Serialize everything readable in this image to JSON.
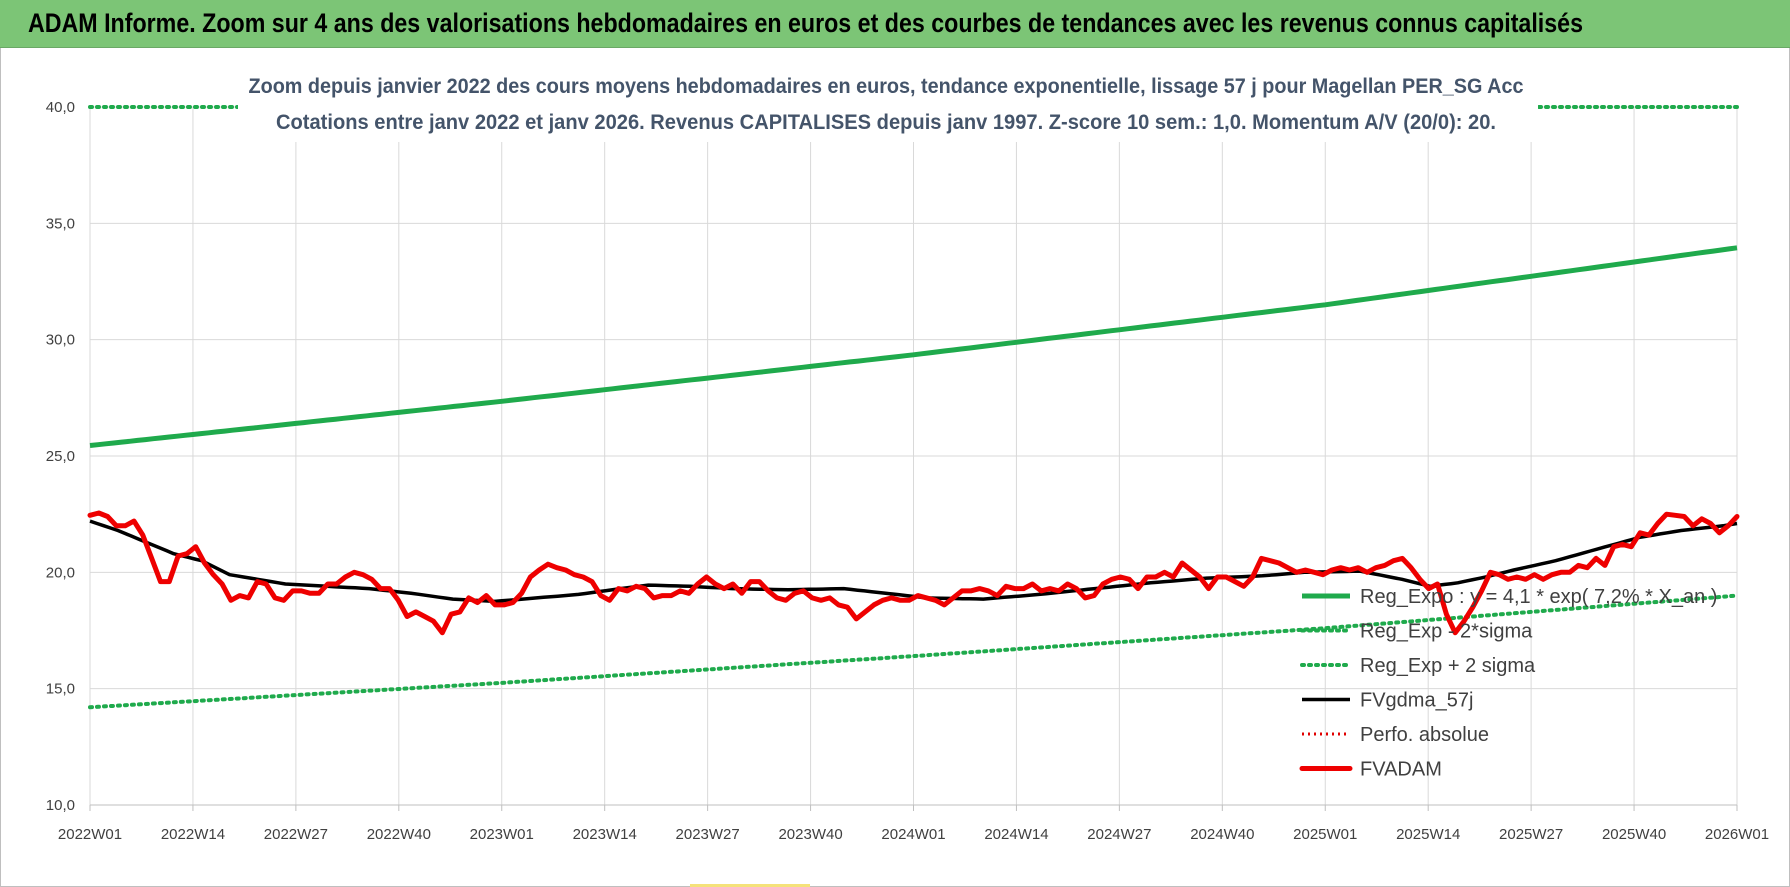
{
  "header": {
    "title": "ADAM Informe. Zoom sur 4 ans des valorisations hebdomadaires en euros et des courbes de tendances avec les revenus connus capitalisés"
  },
  "colors": {
    "header_bg": "#7cc576",
    "reg_exp": "#1faa4c",
    "fv_gdma": "#000000",
    "perfo": "#e00000",
    "fvadam": "#ee0000",
    "title_text": "#44546a",
    "grid": "#d9d9d9"
  },
  "chart_data": {
    "type": "line",
    "title_lines": [
      "Zoom depuis janvier 2022 des cours moyens hebdomadaires en euros, tendance exponentielle, lissage 57 j pour Magellan PER_SG Acc",
      "Cotations entre janv 2022 et janv 2026. Revenus CAPITALISES depuis janv 1997. Z-score 10 sem.: 1,0. Momentum A/V (20/0): 20."
    ],
    "ylim": [
      10,
      40
    ],
    "y_ticks": [
      "10,0",
      "15,0",
      "20,0",
      "25,0",
      "30,0",
      "35,0",
      "40,0"
    ],
    "x_tick_labels": [
      "2022W01",
      "2022W14",
      "2022W27",
      "2022W40",
      "2023W01",
      "2023W14",
      "2023W27",
      "2023W40",
      "2024W01",
      "2024W14",
      "2024W27",
      "2024W40",
      "2025W01",
      "2025W14",
      "2025W27",
      "2025W40",
      "2026W01"
    ],
    "week_count": 209,
    "grid": true,
    "legend_position": "bottom-right",
    "series": [
      {
        "name": "Reg_Expo : y = 4,1 * exp( 7,2% * X_an )",
        "style": "solid-thick-green",
        "anchors": [
          [
            0,
            25.45
          ],
          [
            52,
            27.35
          ],
          [
            104,
            29.35
          ],
          [
            156,
            31.5
          ],
          [
            208,
            33.95
          ]
        ]
      },
      {
        "name": "Reg_Exp - 2*sigma",
        "style": "dotted-green",
        "anchors": [
          [
            0,
            14.2
          ],
          [
            52,
            15.25
          ],
          [
            104,
            16.4
          ],
          [
            156,
            17.6
          ],
          [
            208,
            19.0
          ]
        ]
      },
      {
        "name": "Reg_Exp + 2 sigma",
        "style": "dotted-green",
        "anchors": [
          [
            0,
            40.0
          ],
          [
            208,
            40.0
          ]
        ]
      },
      {
        "name": "FVgdma_57j",
        "style": "solid-black",
        "anchors": [
          [
            0,
            22.2
          ],
          [
            4,
            21.8
          ],
          [
            8,
            21.3
          ],
          [
            12,
            20.8
          ],
          [
            16,
            20.5
          ],
          [
            20,
            19.9
          ],
          [
            24,
            19.7
          ],
          [
            28,
            19.5
          ],
          [
            34,
            19.4
          ],
          [
            40,
            19.3
          ],
          [
            46,
            19.1
          ],
          [
            52,
            18.85
          ],
          [
            58,
            18.75
          ],
          [
            64,
            18.9
          ],
          [
            70,
            19.05
          ],
          [
            76,
            19.3
          ],
          [
            80,
            19.45
          ],
          [
            86,
            19.4
          ],
          [
            92,
            19.3
          ],
          [
            100,
            19.25
          ],
          [
            108,
            19.3
          ],
          [
            114,
            19.1
          ],
          [
            120,
            18.9
          ],
          [
            128,
            18.85
          ],
          [
            136,
            19.05
          ],
          [
            144,
            19.3
          ],
          [
            152,
            19.55
          ],
          [
            160,
            19.75
          ],
          [
            168,
            19.85
          ],
          [
            174,
            20.0
          ],
          [
            182,
            20.05
          ],
          [
            188,
            19.7
          ],
          [
            192,
            19.4
          ],
          [
            196,
            19.55
          ],
          [
            200,
            19.8
          ],
          [
            204,
            20.1
          ],
          [
            210,
            20.5
          ],
          [
            216,
            21.0
          ],
          [
            222,
            21.5
          ],
          [
            228,
            21.8
          ],
          [
            234,
            22.0
          ],
          [
            236,
            22.1
          ]
        ]
      },
      {
        "name": "Perfo. absolue",
        "style": "dotted-red",
        "anchors": []
      },
      {
        "name": "FVADAM",
        "style": "solid-thick-red",
        "anchors": [
          [
            0,
            22.45
          ],
          [
            1,
            22.55
          ],
          [
            2,
            22.4
          ],
          [
            3,
            22.0
          ],
          [
            4,
            22.0
          ],
          [
            5,
            22.2
          ],
          [
            6,
            21.6
          ],
          [
            7,
            20.6
          ],
          [
            8,
            19.6
          ],
          [
            9,
            19.6
          ],
          [
            10,
            20.7
          ],
          [
            11,
            20.8
          ],
          [
            12,
            21.1
          ],
          [
            13,
            20.4
          ],
          [
            14,
            19.9
          ],
          [
            15,
            19.5
          ],
          [
            16,
            18.8
          ],
          [
            17,
            19.0
          ],
          [
            18,
            18.9
          ],
          [
            19,
            19.6
          ],
          [
            20,
            19.5
          ],
          [
            21,
            18.9
          ],
          [
            22,
            18.8
          ],
          [
            23,
            19.2
          ],
          [
            24,
            19.2
          ],
          [
            25,
            19.1
          ],
          [
            26,
            19.1
          ],
          [
            27,
            19.5
          ],
          [
            28,
            19.5
          ],
          [
            29,
            19.8
          ],
          [
            30,
            20.0
          ],
          [
            31,
            19.9
          ],
          [
            32,
            19.7
          ],
          [
            33,
            19.3
          ],
          [
            34,
            19.3
          ],
          [
            35,
            18.8
          ],
          [
            36,
            18.1
          ],
          [
            37,
            18.3
          ],
          [
            38,
            18.1
          ],
          [
            39,
            17.9
          ],
          [
            40,
            17.4
          ],
          [
            41,
            18.2
          ],
          [
            42,
            18.3
          ],
          [
            43,
            18.9
          ],
          [
            44,
            18.7
          ],
          [
            45,
            19.0
          ],
          [
            46,
            18.6
          ],
          [
            47,
            18.6
          ],
          [
            48,
            18.7
          ],
          [
            49,
            19.1
          ],
          [
            50,
            19.8
          ],
          [
            51,
            20.1
          ],
          [
            52,
            20.35
          ],
          [
            53,
            20.2
          ],
          [
            54,
            20.1
          ],
          [
            55,
            19.9
          ],
          [
            56,
            19.8
          ],
          [
            57,
            19.6
          ],
          [
            58,
            19.0
          ],
          [
            59,
            18.8
          ],
          [
            60,
            19.3
          ],
          [
            61,
            19.2
          ],
          [
            62,
            19.4
          ],
          [
            63,
            19.3
          ],
          [
            64,
            18.9
          ],
          [
            65,
            19.0
          ],
          [
            66,
            19.0
          ],
          [
            67,
            19.2
          ],
          [
            68,
            19.1
          ],
          [
            69,
            19.5
          ],
          [
            70,
            19.8
          ],
          [
            71,
            19.5
          ],
          [
            72,
            19.3
          ],
          [
            73,
            19.5
          ],
          [
            74,
            19.1
          ],
          [
            75,
            19.6
          ],
          [
            76,
            19.6
          ],
          [
            77,
            19.2
          ],
          [
            78,
            18.9
          ],
          [
            79,
            18.8
          ],
          [
            80,
            19.1
          ],
          [
            81,
            19.2
          ],
          [
            82,
            18.9
          ],
          [
            83,
            18.8
          ],
          [
            84,
            18.9
          ],
          [
            85,
            18.6
          ],
          [
            86,
            18.5
          ],
          [
            87,
            18.0
          ],
          [
            88,
            18.3
          ],
          [
            89,
            18.6
          ],
          [
            90,
            18.8
          ],
          [
            91,
            18.9
          ],
          [
            92,
            18.8
          ],
          [
            93,
            18.8
          ],
          [
            94,
            19.0
          ],
          [
            95,
            18.9
          ],
          [
            96,
            18.8
          ],
          [
            97,
            18.6
          ],
          [
            98,
            18.9
          ],
          [
            99,
            19.2
          ],
          [
            100,
            19.2
          ],
          [
            101,
            19.3
          ],
          [
            102,
            19.2
          ],
          [
            103,
            19.0
          ],
          [
            104,
            19.4
          ],
          [
            105,
            19.3
          ],
          [
            106,
            19.3
          ],
          [
            107,
            19.5
          ],
          [
            108,
            19.2
          ],
          [
            109,
            19.3
          ],
          [
            110,
            19.2
          ],
          [
            111,
            19.5
          ],
          [
            112,
            19.3
          ],
          [
            113,
            18.9
          ],
          [
            114,
            19.0
          ],
          [
            115,
            19.5
          ],
          [
            116,
            19.7
          ],
          [
            117,
            19.8
          ],
          [
            118,
            19.7
          ],
          [
            119,
            19.3
          ],
          [
            120,
            19.8
          ],
          [
            121,
            19.8
          ],
          [
            122,
            20.0
          ],
          [
            123,
            19.8
          ],
          [
            124,
            20.4
          ],
          [
            125,
            20.1
          ],
          [
            126,
            19.8
          ],
          [
            127,
            19.3
          ],
          [
            128,
            19.8
          ],
          [
            129,
            19.8
          ],
          [
            130,
            19.6
          ],
          [
            131,
            19.4
          ],
          [
            132,
            19.8
          ],
          [
            133,
            20.6
          ],
          [
            134,
            20.5
          ],
          [
            135,
            20.4
          ],
          [
            136,
            20.2
          ],
          [
            137,
            20.0
          ],
          [
            138,
            20.1
          ],
          [
            139,
            20.0
          ],
          [
            140,
            19.9
          ],
          [
            141,
            20.1
          ],
          [
            142,
            20.2
          ],
          [
            143,
            20.1
          ],
          [
            144,
            20.2
          ],
          [
            145,
            20.0
          ],
          [
            146,
            20.2
          ],
          [
            147,
            20.3
          ],
          [
            148,
            20.5
          ],
          [
            149,
            20.6
          ],
          [
            150,
            20.2
          ],
          [
            151,
            19.7
          ],
          [
            152,
            19.3
          ],
          [
            153,
            19.5
          ],
          [
            154,
            18.2
          ],
          [
            155,
            17.4
          ],
          [
            156,
            17.9
          ],
          [
            157,
            18.5
          ],
          [
            158,
            19.2
          ],
          [
            159,
            20.0
          ],
          [
            160,
            19.9
          ],
          [
            161,
            19.7
          ],
          [
            162,
            19.8
          ],
          [
            163,
            19.7
          ],
          [
            164,
            19.9
          ],
          [
            165,
            19.7
          ],
          [
            166,
            19.9
          ],
          [
            167,
            20.0
          ],
          [
            168,
            20.0
          ],
          [
            169,
            20.3
          ],
          [
            170,
            20.2
          ],
          [
            171,
            20.6
          ],
          [
            172,
            20.3
          ],
          [
            173,
            21.1
          ],
          [
            174,
            21.2
          ],
          [
            175,
            21.1
          ],
          [
            176,
            21.7
          ],
          [
            177,
            21.6
          ],
          [
            178,
            22.1
          ],
          [
            179,
            22.5
          ],
          [
            180,
            22.45
          ],
          [
            181,
            22.4
          ],
          [
            182,
            22.0
          ],
          [
            183,
            22.3
          ],
          [
            184,
            22.1
          ],
          [
            185,
            21.7
          ],
          [
            186,
            22.0
          ],
          [
            187,
            22.4
          ]
        ]
      }
    ]
  }
}
